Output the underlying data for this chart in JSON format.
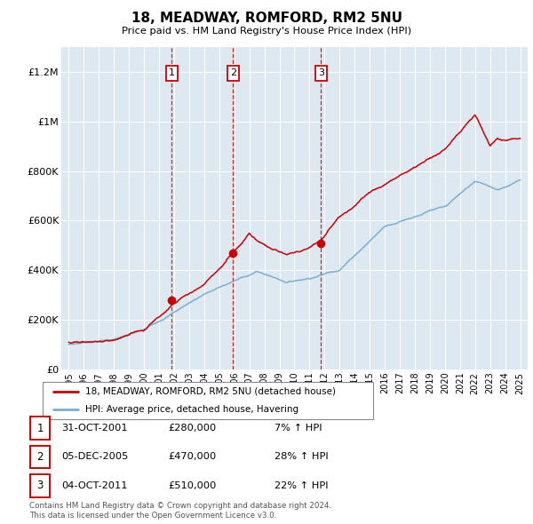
{
  "title": "18, MEADWAY, ROMFORD, RM2 5NU",
  "subtitle": "Price paid vs. HM Land Registry's House Price Index (HPI)",
  "legend_label_red": "18, MEADWAY, ROMFORD, RM2 5NU (detached house)",
  "legend_label_blue": "HPI: Average price, detached house, Havering",
  "footer_line1": "Contains HM Land Registry data © Crown copyright and database right 2024.",
  "footer_line2": "This data is licensed under the Open Government Licence v3.0.",
  "transactions": [
    {
      "num": 1,
      "date": "31-OCT-2001",
      "price": 280000,
      "hpi_pct": "7%",
      "direction": "↑"
    },
    {
      "num": 2,
      "date": "05-DEC-2005",
      "price": 470000,
      "hpi_pct": "28%",
      "direction": "↑"
    },
    {
      "num": 3,
      "date": "04-OCT-2011",
      "price": 510000,
      "hpi_pct": "22%",
      "direction": "↑"
    }
  ],
  "transaction_dates_decimal": [
    2001.833,
    2005.922,
    2011.753
  ],
  "transaction_prices": [
    280000,
    470000,
    510000
  ],
  "red_color": "#cc0000",
  "blue_color": "#7aafd4",
  "bg_color": "#dde8f0",
  "grid_color": "#ffffff",
  "vline_color": "#dd0000",
  "box_color": "#cc0000",
  "ylim": [
    0,
    1300000
  ],
  "xlim_start": 1994.5,
  "xlim_end": 2025.5,
  "yticks": [
    0,
    200000,
    400000,
    600000,
    800000,
    1000000,
    1200000
  ],
  "ytick_labels": [
    "£0",
    "£200K",
    "£400K",
    "£600K",
    "£800K",
    "£1M",
    "£1.2M"
  ]
}
